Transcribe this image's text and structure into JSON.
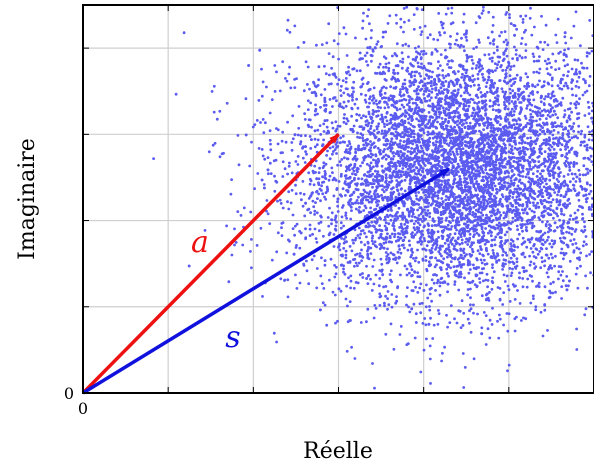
{
  "chart_data": {
    "type": "scatter",
    "xlabel": "Réelle",
    "ylabel": "Imaginaire",
    "x_tick_label": "0",
    "y_tick_label": "0",
    "xlim": [
      0,
      6
    ],
    "ylim": [
      0,
      4.5
    ],
    "grid": true,
    "point_color": "#5b5bf0",
    "cloud": {
      "n_points": 7000,
      "center": [
        4.4,
        2.6
      ],
      "spread_x": 0.95,
      "spread_y": 0.75
    },
    "vectors": [
      {
        "name": "a",
        "label": "a",
        "from": [
          0,
          0
        ],
        "to": [
          3.0,
          3.0
        ],
        "color": "#ee1111"
      },
      {
        "name": "s",
        "label": "s",
        "from": [
          0,
          0
        ],
        "to": [
          4.3,
          2.6
        ],
        "color": "#1111dd"
      }
    ]
  }
}
